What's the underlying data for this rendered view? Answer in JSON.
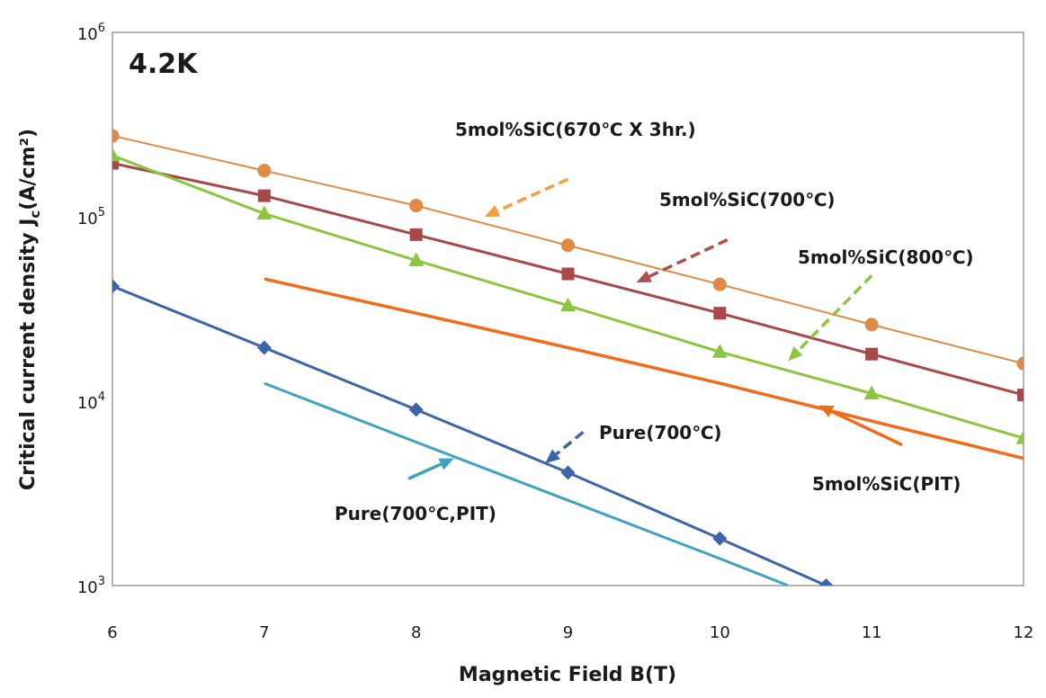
{
  "chart_data": {
    "type": "line",
    "corner_label": "4.2K",
    "xlabel": "Magnetic Field B(T)",
    "ylabel_main": "Critical current density J",
    "ylabel_sub": "c",
    "ylabel_unit": "(A/cm²)",
    "xlim": [
      6,
      12
    ],
    "ylim": [
      1000,
      1000000
    ],
    "yscale": "log",
    "grid": false,
    "x_ticks": [
      "6",
      "7",
      "8",
      "9",
      "10",
      "11",
      "12"
    ],
    "y_ticks": [
      {
        "base": "10",
        "exp": "3",
        "value": 1000
      },
      {
        "base": "10",
        "exp": "4",
        "value": 10000
      },
      {
        "base": "10",
        "exp": "5",
        "value": 100000
      },
      {
        "base": "10",
        "exp": "6",
        "value": 1000000
      }
    ],
    "series": [
      {
        "name": "5mol%SiC(670℃ X 3hr.)",
        "color": "#e08a48",
        "marker": "circle",
        "width": 2,
        "x": [
          6,
          7,
          8,
          9,
          10,
          11,
          12
        ],
        "y": [
          275000,
          178000,
          115000,
          70000,
          43000,
          26000,
          16000
        ]
      },
      {
        "name": "5mol%SiC(700℃)",
        "color": "#a84848",
        "marker": "square",
        "width": 3,
        "x": [
          6,
          7,
          8,
          9,
          10,
          11,
          12
        ],
        "y": [
          195000,
          130000,
          80000,
          49000,
          30000,
          18000,
          10800
        ]
      },
      {
        "name": "5mol%SiC(800℃)",
        "color": "#8cc63f",
        "marker": "triangle",
        "width": 3,
        "x": [
          6,
          7,
          8,
          9,
          10,
          11,
          12
        ],
        "y": [
          215000,
          104000,
          58000,
          33000,
          18500,
          11000,
          6300
        ]
      },
      {
        "name": "5mol%SiC(PIT)",
        "color": "#f26a1b",
        "marker": "none",
        "width": 3.5,
        "x": [
          7,
          8,
          9,
          10,
          11,
          12
        ],
        "y": [
          46000,
          30000,
          19500,
          12500,
          7800,
          4900
        ]
      },
      {
        "name": "Pure(700℃)",
        "color": "#3c65a8",
        "marker": "diamond",
        "width": 3,
        "x": [
          6,
          7,
          8,
          9,
          10,
          10.7
        ],
        "y": [
          42000,
          19500,
          9000,
          4100,
          1800,
          1000
        ]
      },
      {
        "name": "Pure(700℃,PIT)",
        "color": "#3ea3c0",
        "marker": "none",
        "width": 3,
        "x": [
          7,
          8,
          9,
          10,
          10.45
        ],
        "y": [
          12500,
          6000,
          2900,
          1400,
          1000
        ]
      }
    ],
    "annotations": [
      {
        "text": "5mol%SiC(670℃ X 3hr.)",
        "color": "#f4a040",
        "dashed": true,
        "arrow_from": [
          9.0,
          160000
        ],
        "arrow_to": [
          8.45,
          100000
        ]
      },
      {
        "text": "5mol%SiC(700℃)",
        "color": "#b05050",
        "dashed": true,
        "arrow_from": [
          10.05,
          75000
        ],
        "arrow_to": [
          9.45,
          44000
        ]
      },
      {
        "name_note": "",
        "text": "5mol%SiC(800℃)",
        "color": "#8cc63f",
        "dashed": true,
        "arrow_from": [
          11.0,
          48000
        ],
        "arrow_to": [
          10.45,
          16500
        ]
      },
      {
        "text": "5mol%SiC(PIT)",
        "color": "#f26a1b",
        "dashed": false,
        "arrow_from": [
          11.2,
          5800
        ],
        "arrow_to": [
          10.65,
          9500
        ]
      },
      {
        "text": "Pure(700℃)",
        "color": "#3c65a8",
        "dashed": true,
        "arrow_from": [
          9.1,
          6800
        ],
        "arrow_to": [
          8.85,
          4600
        ]
      },
      {
        "text": "Pure(700℃,PIT)",
        "color": "#3ea3c0",
        "dashed": false,
        "arrow_from": [
          7.95,
          3800
        ],
        "arrow_to": [
          8.25,
          4900
        ]
      }
    ]
  }
}
